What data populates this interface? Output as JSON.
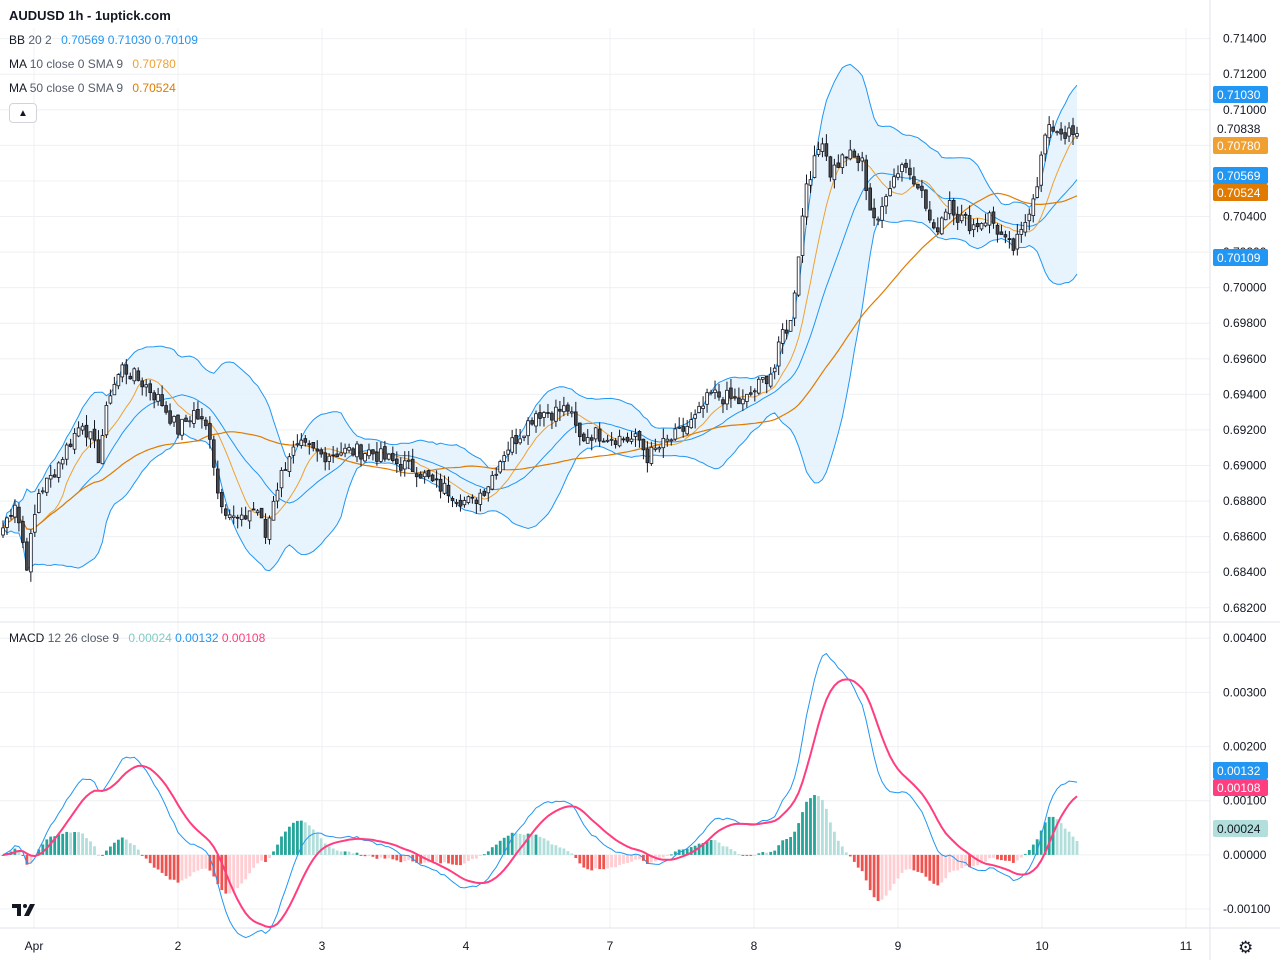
{
  "header": {
    "title": "AUDUSD 1h - 1uptick.com"
  },
  "legend": {
    "bb": {
      "name": "BB",
      "params": "20 2",
      "v1": "0.70569",
      "v2": "0.71030",
      "v3": "0.70109",
      "color": "#2196f3"
    },
    "ma10": {
      "name": "MA",
      "params": "10 close 0 SMA 9",
      "value": "0.70780",
      "color": "#f0a030"
    },
    "ma50": {
      "name": "MA",
      "params": "50 close 0 SMA 9",
      "value": "0.70524",
      "color": "#e07b00"
    },
    "macd": {
      "name": "MACD",
      "params": "12 26 close 9",
      "v1": "0.00024",
      "v2": "0.00132",
      "v3": "0.00108"
    }
  },
  "colors": {
    "up": "#ffffff",
    "down": "#4a4a4a",
    "bb": "#2196f3",
    "bbFill": "#e3f2fd",
    "ma10": "#f0a030",
    "ma50": "#e07b00",
    "macdLine": "#2196f3",
    "signal": "#ff3d7f",
    "histUp": "#26a69a",
    "histUpLight": "#b2dfdb",
    "histDown": "#ef5350",
    "histDownLight": "#ffcdd2"
  },
  "chart_data": [
    {
      "type": "candlestick",
      "title": "AUDUSD 1h",
      "x_ticks": [
        "Apr",
        "2",
        "3",
        "4",
        "7",
        "8",
        "9",
        "10",
        "11"
      ],
      "y_ticks": [
        "0.71400",
        "0.71200",
        "0.71000",
        "0.70800",
        "0.70600",
        "0.70400",
        "0.70200",
        "0.70000",
        "0.69800",
        "0.69600",
        "0.69400",
        "0.69200",
        "0.69000",
        "0.68800",
        "0.68600",
        "0.68400",
        "0.68200"
      ],
      "ylim": [
        0.6812,
        0.7146
      ],
      "price_labels": [
        {
          "value": "0.71030",
          "color": "#2196f3"
        },
        {
          "value": "0.70838",
          "color": "#ffffff"
        },
        {
          "value": "0.70780",
          "color": "#f0a030"
        },
        {
          "value": "0.70569",
          "color": "#2196f3"
        },
        {
          "value": "0.70524",
          "color": "#e07b00"
        },
        {
          "value": "0.70109",
          "color": "#2196f3"
        }
      ],
      "close_anchors": [
        [
          0,
          0.6865
        ],
        [
          3,
          0.688
        ],
        [
          6,
          0.6845
        ],
        [
          9,
          0.6885
        ],
        [
          12,
          0.6893
        ],
        [
          16,
          0.691
        ],
        [
          20,
          0.6925
        ],
        [
          24,
          0.6905
        ],
        [
          27,
          0.6942
        ],
        [
          30,
          0.6955
        ],
        [
          33,
          0.695
        ],
        [
          36,
          0.6945
        ],
        [
          40,
          0.6935
        ],
        [
          44,
          0.692
        ],
        [
          48,
          0.693
        ],
        [
          52,
          0.6918
        ],
        [
          54,
          0.6885
        ],
        [
          56,
          0.6876
        ],
        [
          58,
          0.687
        ],
        [
          60,
          0.6868
        ],
        [
          62,
          0.6875
        ],
        [
          64,
          0.6875
        ],
        [
          66,
          0.686
        ],
        [
          68,
          0.6882
        ],
        [
          70,
          0.6895
        ],
        [
          72,
          0.6907
        ],
        [
          75,
          0.691
        ],
        [
          80,
          0.6906
        ],
        [
          85,
          0.6908
        ],
        [
          92,
          0.6908
        ],
        [
          98,
          0.6902
        ],
        [
          104,
          0.6898
        ],
        [
          108,
          0.689
        ],
        [
          112,
          0.6886
        ],
        [
          116,
          0.688
        ],
        [
          118,
          0.6879
        ],
        [
          122,
          0.689
        ],
        [
          126,
          0.6908
        ],
        [
          130,
          0.6918
        ],
        [
          134,
          0.693
        ],
        [
          138,
          0.693
        ],
        [
          142,
          0.6932
        ],
        [
          145,
          0.6915
        ],
        [
          148,
          0.6918
        ],
        [
          152,
          0.6917
        ],
        [
          156,
          0.6915
        ],
        [
          160,
          0.6914
        ],
        [
          162,
          0.6905
        ],
        [
          165,
          0.691
        ],
        [
          170,
          0.6918
        ],
        [
          174,
          0.6926
        ],
        [
          178,
          0.694
        ],
        [
          182,
          0.6938
        ],
        [
          186,
          0.6935
        ],
        [
          190,
          0.6945
        ],
        [
          194,
          0.6955
        ],
        [
          196,
          0.6975
        ],
        [
          198,
          0.698
        ],
        [
          200,
          0.702
        ],
        [
          202,
          0.706
        ],
        [
          204,
          0.707
        ],
        [
          206,
          0.7085
        ],
        [
          208,
          0.7065
        ],
        [
          212,
          0.7075
        ],
        [
          216,
          0.707
        ],
        [
          218,
          0.7045
        ],
        [
          220,
          0.7035
        ],
        [
          222,
          0.7055
        ],
        [
          226,
          0.707
        ],
        [
          230,
          0.706
        ],
        [
          232,
          0.7045
        ],
        [
          234,
          0.703
        ],
        [
          238,
          0.705
        ],
        [
          240,
          0.704
        ],
        [
          244,
          0.7035
        ],
        [
          248,
          0.704
        ],
        [
          252,
          0.7025
        ],
        [
          254,
          0.7022
        ],
        [
          256,
          0.703
        ],
        [
          258,
          0.7045
        ],
        [
          260,
          0.706
        ],
        [
          262,
          0.7085
        ],
        [
          264,
          0.709
        ],
        [
          266,
          0.7088
        ],
        [
          270,
          0.7084
        ]
      ]
    },
    {
      "type": "line",
      "title": "MACD 12 26 close 9",
      "y_ticks": [
        "0.00400",
        "0.00300",
        "0.00200",
        "0.00100",
        "0.00000",
        "-0.00100"
      ],
      "ylim": [
        -0.00135,
        0.0043
      ],
      "price_labels": [
        {
          "value": "0.00132",
          "color": "#2196f3"
        },
        {
          "value": "0.00108",
          "color": "#ff3d7f"
        },
        {
          "value": "0.00024",
          "color": "#b2dfdb"
        }
      ]
    }
  ]
}
